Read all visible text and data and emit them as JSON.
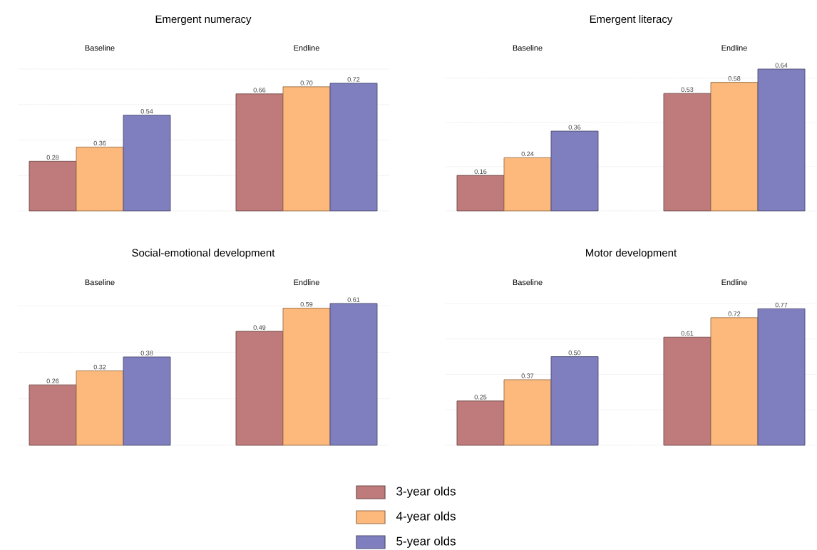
{
  "chart_data": [
    {
      "type": "bar",
      "title": "Emergent numeracy",
      "categories": [
        "Baseline",
        "Endline"
      ],
      "series": [
        {
          "name": "3-year olds",
          "color": "#bf7b7b",
          "values": [
            0.28,
            0.66
          ],
          "value_labels": [
            "0.28",
            "0.66"
          ]
        },
        {
          "name": "4-year olds",
          "color": "#fdb97c",
          "values": [
            0.36,
            0.7
          ],
          "value_labels": [
            "0.36",
            "0.70"
          ]
        },
        {
          "name": "5-year olds",
          "color": "#7f7fbf",
          "values": [
            0.54,
            0.72
          ],
          "value_labels": [
            "0.54",
            "0.72"
          ]
        }
      ],
      "yticks": [
        {
          "value": 0,
          "label": null
        },
        {
          "value": 0.2,
          "label": null
        },
        {
          "value": 0.4,
          "label": null
        },
        {
          "value": 0.6,
          "label": null
        },
        {
          "value": 0.8,
          "label": null
        }
      ],
      "grid": "y",
      "tick_labels": "x",
      "legend": "bottom"
    },
    {
      "type": "bar",
      "title": "Emergent literacy",
      "categories": [
        "Baseline",
        "Endline"
      ],
      "series": [
        {
          "color": "#bf7b7b",
          "values": [
            0.16,
            0.53
          ],
          "value_labels": [
            "0.16",
            "0.53"
          ]
        },
        {
          "color": "#fdb97c",
          "values": [
            0.24,
            0.58
          ],
          "value_labels": [
            "0.24",
            "0.58"
          ]
        },
        {
          "color": "#7f7fbf",
          "values": [
            0.36,
            0.64
          ],
          "value_labels": [
            "0.36",
            "0.64"
          ]
        }
      ],
      "yticks": [
        {
          "value": 0,
          "label": null
        },
        {
          "value": 0.2,
          "label": null
        },
        {
          "value": 0.4,
          "label": null
        },
        {
          "value": 0.6,
          "label": null
        }
      ],
      "grid": "y",
      "tick_labels": "x"
    },
    {
      "type": "bar",
      "title": "Social-emotional development",
      "categories": [
        "Baseline",
        "Endline"
      ],
      "series": [
        {
          "color": "#bf7b7b",
          "values": [
            0.26,
            0.49
          ],
          "value_labels": [
            "0.26",
            "0.49"
          ]
        },
        {
          "color": "#fdb97c",
          "values": [
            0.32,
            0.59
          ],
          "value_labels": [
            "0.32",
            "0.59"
          ]
        },
        {
          "color": "#7f7fbf",
          "values": [
            0.38,
            0.61
          ],
          "value_labels": [
            "0.38",
            "0.61"
          ]
        }
      ],
      "yticks": [
        {
          "value": 0,
          "label": null
        },
        {
          "value": 0.2,
          "label": null
        },
        {
          "value": 0.4,
          "label": null
        },
        {
          "value": 0.6,
          "label": null
        }
      ],
      "grid": "y",
      "tick_labels": "x"
    },
    {
      "type": "bar",
      "title": "Motor development",
      "categories": [
        "Baseline",
        "Endline"
      ],
      "series": [
        {
          "color": "#bf7b7b",
          "values": [
            0.25,
            0.61
          ],
          "value_labels": [
            "0.25",
            "0.61"
          ]
        },
        {
          "color": "#fdb97c",
          "values": [
            0.37,
            0.72
          ],
          "value_labels": [
            "0.37",
            "0.72"
          ]
        },
        {
          "color": "#7f7fbf",
          "values": [
            0.5,
            0.77
          ],
          "value_labels": [
            "0.50",
            "0.77"
          ]
        }
      ],
      "yticks": [
        {
          "value": 0,
          "label": null
        },
        {
          "value": 0.2,
          "label": null
        },
        {
          "value": 0.4,
          "label": null
        },
        {
          "value": 0.6,
          "label": null
        },
        {
          "value": 0.8,
          "label": null
        }
      ],
      "grid": "y",
      "tick_labels": "x"
    }
  ]
}
